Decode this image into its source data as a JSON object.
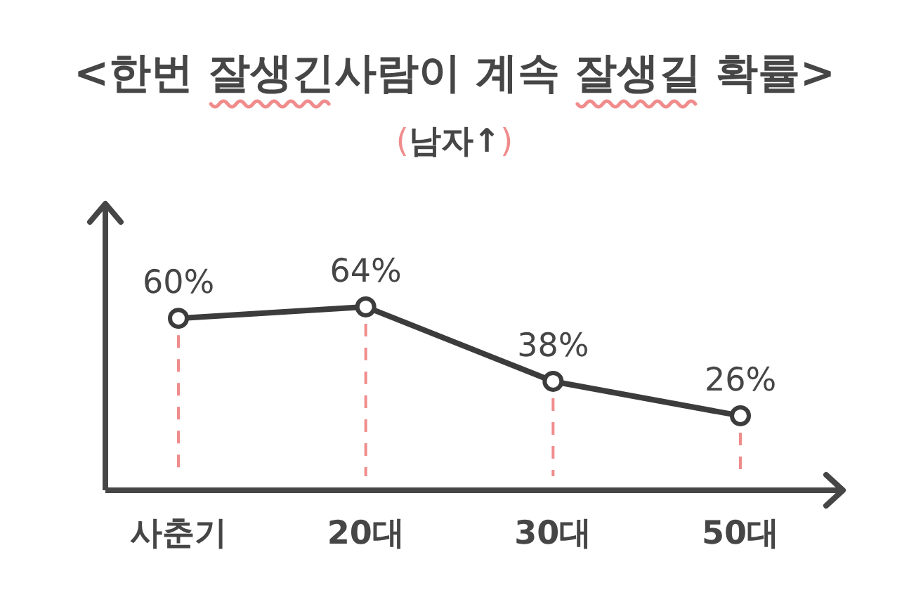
{
  "chart_data": {
    "type": "line",
    "title": "<한번 잘생긴사람이 계속 잘생길 확률>",
    "subtitle": "(남자↑)",
    "categories": [
      "사춘기",
      "20대",
      "30대",
      "50대"
    ],
    "values": [
      60,
      64,
      38,
      26
    ],
    "color": "#3c3c3c",
    "value_labels": [
      "60%",
      "64%",
      "38%",
      "26%"
    ],
    "ylim": [
      0,
      100
    ],
    "tick_labels": "x",
    "marker": "circle",
    "line_style": "solid"
  }
}
